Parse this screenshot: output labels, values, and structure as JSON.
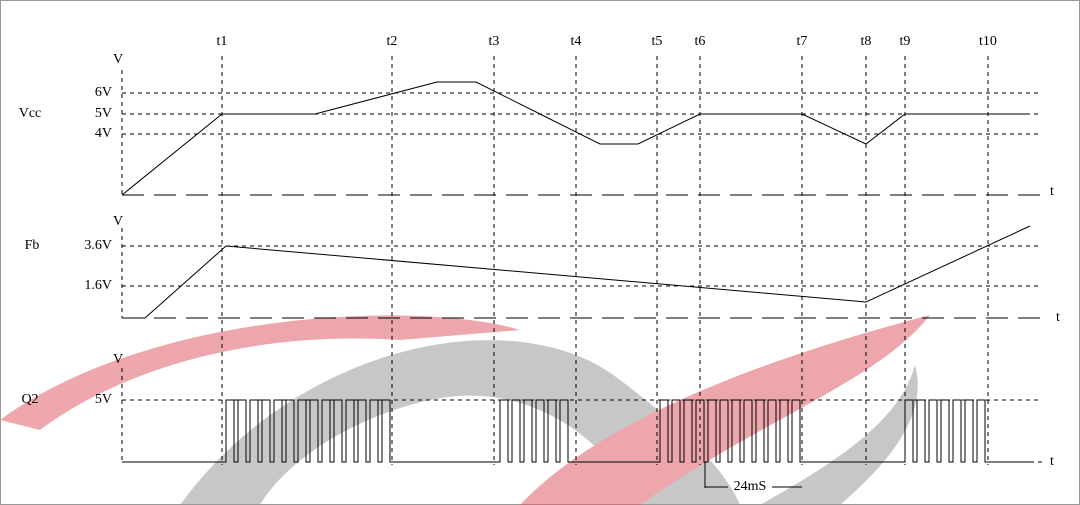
{
  "time_labels": [
    "t1",
    "t2",
    "t3",
    "t4",
    "t5",
    "t6",
    "t7",
    "t8",
    "t9",
    "t10"
  ],
  "signals": [
    {
      "name": "Vcc",
      "unit": "V",
      "levels": [
        "6V",
        "5V",
        "4V"
      ],
      "axis": "t"
    },
    {
      "name": "Fb",
      "unit": "V",
      "levels": [
        "3.6V",
        "1.6V"
      ],
      "axis": "t"
    },
    {
      "name": "Q2",
      "unit": "V",
      "levels": [
        "5V"
      ],
      "axis": "t"
    }
  ],
  "interval_label": "24mS"
}
